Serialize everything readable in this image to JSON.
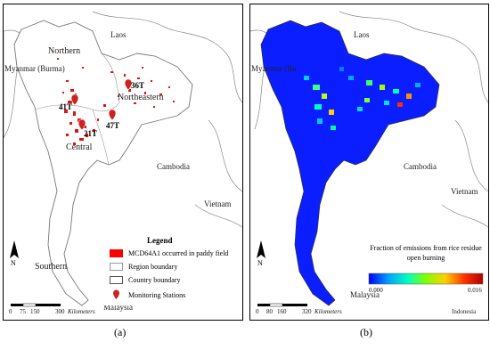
{
  "panel_a": {
    "caption": "(a)",
    "labels": {
      "laos": "Laos",
      "northern": "Northern",
      "myanmar": "Myanmar (Burma)",
      "northeastern": "Northeastern",
      "central": "Central",
      "cambodia": "Cambodia",
      "vietnam": "Vietnam",
      "southern": "Southern",
      "malaysia": "Malaysia"
    },
    "stations": [
      "36T",
      "41T",
      "21T",
      "47T"
    ],
    "legend": {
      "title": "Legend",
      "items": [
        {
          "label": "MCD64A1 occurred in paddy field",
          "color": "#ff0000"
        },
        {
          "label": "Region boundary",
          "color": "#ffffff"
        },
        {
          "label": "Country boundary",
          "color": "#ffffff"
        },
        {
          "label": "Monitoring Stations",
          "color": "#cc2222"
        }
      ]
    },
    "scale": {
      "ticks": [
        "0",
        "75",
        "150",
        "300"
      ],
      "unit": "Kilometers"
    },
    "north": "N"
  },
  "panel_b": {
    "caption": "(b)",
    "labels": {
      "laos": "Laos",
      "myanmar": "Myanmar (Bu",
      "cambodia": "Cambodia",
      "vietnam": "Vietnam",
      "malaysia": "Malaysia",
      "indonesia": "Indonesia"
    },
    "colorbar": {
      "title": "Fraction of emissions from rice residue open burning",
      "min": "0.000",
      "max": "0.016",
      "colors": [
        "#0000ff",
        "#00a0ff",
        "#00ffc0",
        "#80ff00",
        "#ffd000",
        "#ff3000",
        "#b00000"
      ]
    },
    "scale": {
      "ticks": [
        "0",
        "80",
        "160",
        "320"
      ],
      "unit": "Kilometers"
    },
    "north": "N"
  }
}
